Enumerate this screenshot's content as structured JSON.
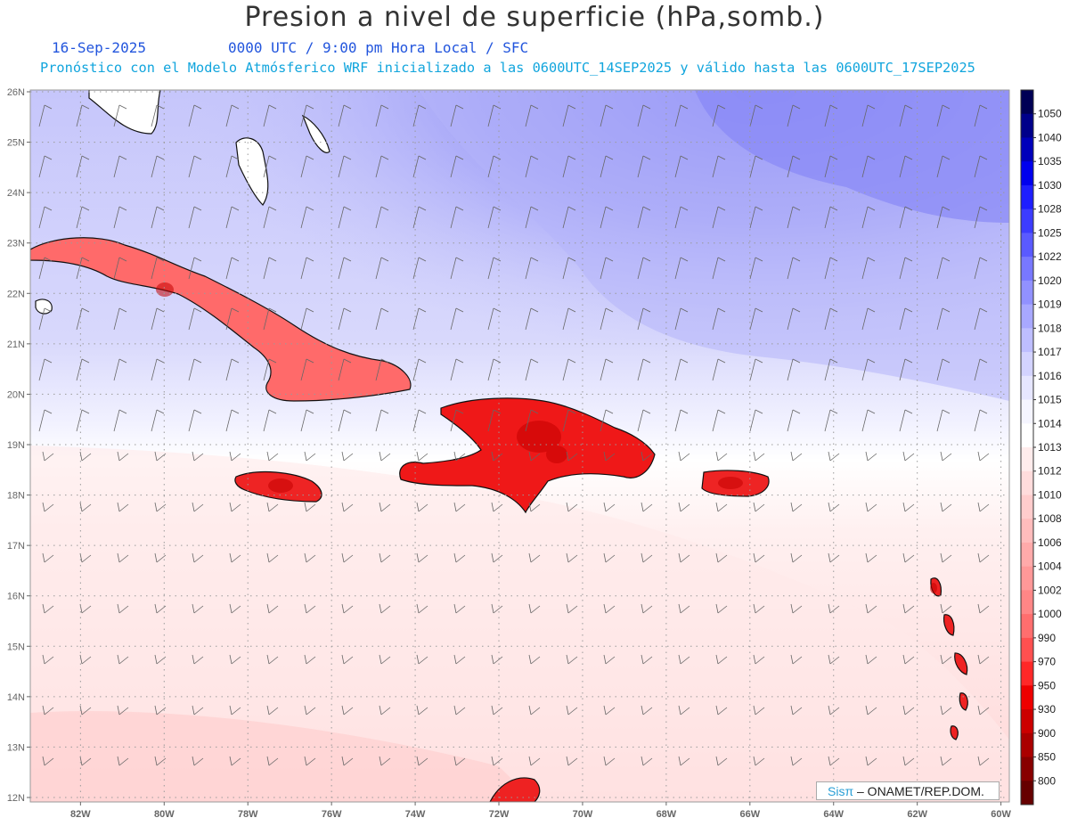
{
  "header": {
    "title": "Presion a nivel de superficie (hPa,somb.)",
    "date": "16-Sep-2025",
    "valid_time": "0000 UTC / 9:00 pm Hora Local / SFC",
    "model_line": "Pronóstico con el Modelo Atmósferico WRF inicializado a las 0600UTC_14SEP2025 y válido hasta las  0600UTC_17SEP2025"
  },
  "map": {
    "lat_labels": [
      "26N",
      "25N",
      "24N",
      "23N",
      "22N",
      "21N",
      "20N",
      "19N",
      "18N",
      "17N",
      "16N",
      "15N",
      "14N",
      "13N",
      "12N"
    ],
    "lon_labels": [
      "82W",
      "80W",
      "78W",
      "76W",
      "74W",
      "72W",
      "70W",
      "68W",
      "66W",
      "64W",
      "62W",
      "60W"
    ],
    "lat_range": [
      12,
      26
    ],
    "lon_range": [
      -83.2,
      -59.8
    ],
    "grid": "dotted"
  },
  "colorbar": {
    "levels": [
      "1050",
      "1040",
      "1035",
      "1030",
      "1028",
      "1025",
      "1022",
      "1020",
      "1019",
      "1018",
      "1017",
      "1016",
      "1015",
      "1014",
      "1013",
      "1012",
      "1010",
      "1008",
      "1006",
      "1004",
      "1002",
      "1000",
      "990",
      "970",
      "950",
      "930",
      "900",
      "850",
      "800"
    ],
    "colors": [
      "#000055",
      "#00008a",
      "#0000bb",
      "#0000ee",
      "#1e1eff",
      "#3c3cff",
      "#5a5aff",
      "#7878ff",
      "#9191ff",
      "#a8a8ff",
      "#bebeff",
      "#d3d3ff",
      "#e6e6ff",
      "#f5f5ff",
      "#ffffff",
      "#ffecec",
      "#ffdcdc",
      "#ffcccc",
      "#ffbcbc",
      "#ffaaaa",
      "#ff9898",
      "#ff8686",
      "#ff6e6e",
      "#ff5050",
      "#ff2828",
      "#ee0000",
      "#cc0000",
      "#aa0000",
      "#880000",
      "#660000"
    ]
  },
  "credit": {
    "brand": "Sisπ",
    "text": " – ONAMET/REP.DOM."
  }
}
